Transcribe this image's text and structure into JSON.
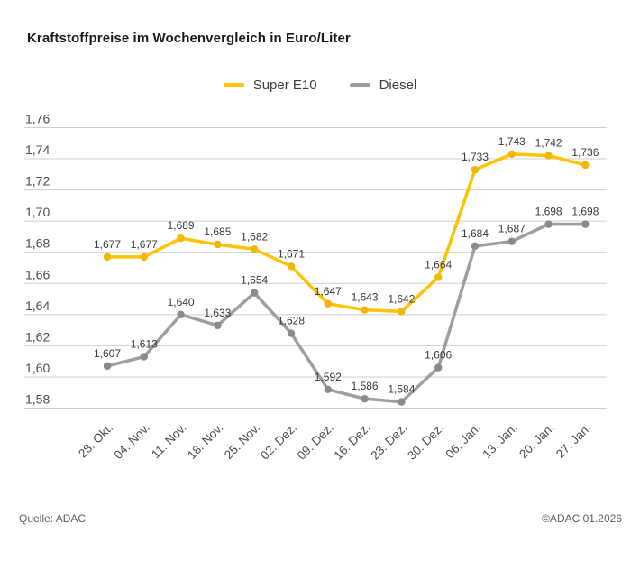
{
  "title": "Kraftstoffpreise im Wochenvergleich in Euro/Liter",
  "legend": [
    {
      "label": "Super E10",
      "color": "#FBC300"
    },
    {
      "label": "Diesel",
      "color": "#9B9B9B"
    }
  ],
  "footer": {
    "source": "Quelle: ADAC",
    "copyright": "©ADAC 01.2026"
  },
  "chart_data": {
    "type": "line",
    "title": "Kraftstoffpreise im Wochenvergleich in Euro/Liter",
    "xlabel": "",
    "ylabel": "Euro/Liter",
    "categories": [
      "28. Okt.",
      "04. Nov.",
      "11. Nov.",
      "18. Nov.",
      "25. Nov.",
      "02. Dez.",
      "09. Dez.",
      "16. Dez.",
      "23. Dez.",
      "30. Dez.",
      "06. Jan.",
      "13. Jan.",
      "20. Jan.",
      "27. Jan."
    ],
    "series": [
      {
        "name": "Super E10",
        "line_color": "#FBC300",
        "marker_color": "#F2B705",
        "values": [
          1.677,
          1.677,
          1.689,
          1.685,
          1.682,
          1.671,
          1.647,
          1.643,
          1.642,
          1.664,
          1.733,
          1.743,
          1.742,
          1.736
        ]
      },
      {
        "name": "Diesel",
        "line_color": "#9E9E9E",
        "marker_color": "#8A8A8A",
        "values": [
          1.607,
          1.613,
          1.64,
          1.633,
          1.654,
          1.628,
          1.592,
          1.586,
          1.584,
          1.606,
          1.684,
          1.687,
          1.698,
          1.698
        ]
      }
    ],
    "ylim": [
      1.58,
      1.76
    ],
    "y_tick_step": 0.02,
    "y_tick_decimals": 2,
    "value_decimals": 3,
    "decimal_separator": ",",
    "grid": true,
    "legend_position": "top",
    "grid_color": "#CFCFCF",
    "axis_label_color": "#4d4d4d",
    "data_label_color": "#3a3a3a"
  }
}
